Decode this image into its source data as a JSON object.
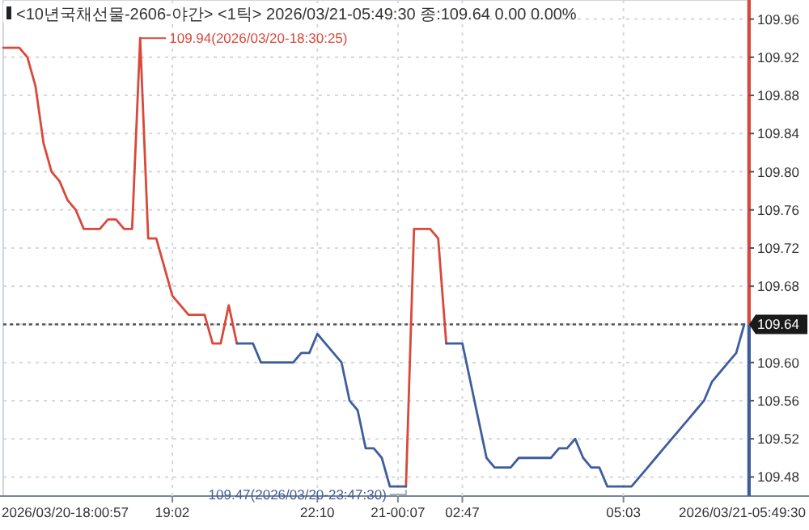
{
  "chart_data": {
    "type": "line",
    "title": "<10년국채선물-2606-야간> <1틱> 2026/03/21-05:49:30 종:109.64 0.00 0.00%",
    "categories": [
      null,
      null,
      null,
      null,
      null,
      null,
      null,
      null,
      null,
      null,
      null,
      null,
      null,
      null,
      null,
      null,
      null,
      null,
      null,
      null,
      null,
      "19:02",
      null,
      null,
      null,
      null,
      null,
      null,
      null,
      null,
      null,
      null,
      null,
      null,
      null,
      null,
      null,
      null,
      null,
      "22:10",
      null,
      null,
      null,
      null,
      null,
      null,
      null,
      null,
      null,
      "21-00:07",
      null,
      null,
      null,
      null,
      null,
      null,
      null,
      "02:47",
      null,
      null,
      null,
      null,
      null,
      null,
      null,
      null,
      null,
      null,
      null,
      null,
      null,
      null,
      null,
      null,
      null,
      null,
      null,
      "05:03",
      null,
      null,
      null,
      null,
      null,
      null,
      null,
      null,
      null,
      null,
      null,
      null,
      null,
      null,
      null
    ],
    "series": [
      {
        "color": "#d9483b",
        "values": [
          109.93,
          109.93,
          109.93,
          109.92,
          109.89,
          109.83,
          109.8,
          109.79,
          109.77,
          109.76,
          109.74,
          109.74,
          109.74,
          109.75,
          109.75,
          109.74,
          109.74,
          109.94,
          109.73,
          109.73,
          109.7,
          109.67,
          109.66,
          109.65,
          109.65,
          109.65,
          109.62,
          109.62,
          109.66,
          109.62,
          null,
          null,
          null,
          null,
          null,
          null,
          null,
          null,
          null,
          null,
          null,
          null,
          null,
          null,
          null,
          null,
          null,
          null,
          null,
          null,
          109.47,
          109.74,
          109.74,
          109.74,
          109.73,
          109.62,
          null,
          null,
          null,
          null,
          null,
          null,
          null,
          null,
          null,
          null,
          null,
          null,
          null,
          null,
          null,
          null,
          null,
          null,
          null,
          null,
          null,
          null,
          null,
          null,
          null,
          null,
          null,
          null,
          null,
          null,
          null,
          null,
          null,
          null,
          null,
          null,
          null
        ]
      },
      {
        "color": "#3d5d9c",
        "values": [
          null,
          null,
          null,
          null,
          null,
          null,
          null,
          null,
          null,
          null,
          null,
          null,
          null,
          null,
          null,
          null,
          null,
          null,
          null,
          null,
          null,
          null,
          null,
          null,
          null,
          null,
          null,
          null,
          null,
          109.62,
          109.62,
          109.62,
          109.6,
          109.6,
          109.6,
          109.6,
          109.6,
          109.61,
          109.61,
          109.63,
          109.62,
          109.61,
          109.6,
          109.56,
          109.55,
          109.51,
          109.51,
          109.5,
          109.47,
          109.47,
          109.47,
          null,
          null,
          null,
          null,
          109.62,
          109.62,
          109.62,
          109.58,
          109.54,
          109.5,
          109.49,
          109.49,
          109.49,
          109.5,
          109.5,
          109.5,
          109.5,
          109.5,
          109.51,
          109.51,
          109.52,
          109.5,
          109.49,
          109.49,
          109.47,
          109.47,
          109.47,
          109.47,
          109.48,
          109.49,
          109.5,
          109.51,
          109.52,
          109.53,
          109.54,
          109.55,
          109.56,
          109.58,
          109.59,
          109.6,
          109.61,
          109.64
        ]
      }
    ],
    "ylim": [
      109.46,
      109.98
    ],
    "yticks": [
      109.48,
      109.52,
      109.56,
      {
        "value": 109.6,
        "label": "109.60"
      },
      109.64,
      109.68,
      109.72,
      109.76,
      {
        "value": 109.8,
        "label": "109.80"
      },
      109.84,
      109.88,
      109.92,
      109.96
    ],
    "ref_lines": [
      {
        "axis": "y",
        "value": 109.64,
        "label": "109.64",
        "color": "#555555",
        "line_style": "dotted"
      }
    ],
    "annotations": [
      "109.94(2026/03/20-18:30:25)",
      "109.47(2026/03/20-23:47:30)",
      "2026/03/20-18:00:57",
      "2026/03/21-05:49:30"
    ],
    "grid": true,
    "marker": "none",
    "line_style": "solid"
  }
}
